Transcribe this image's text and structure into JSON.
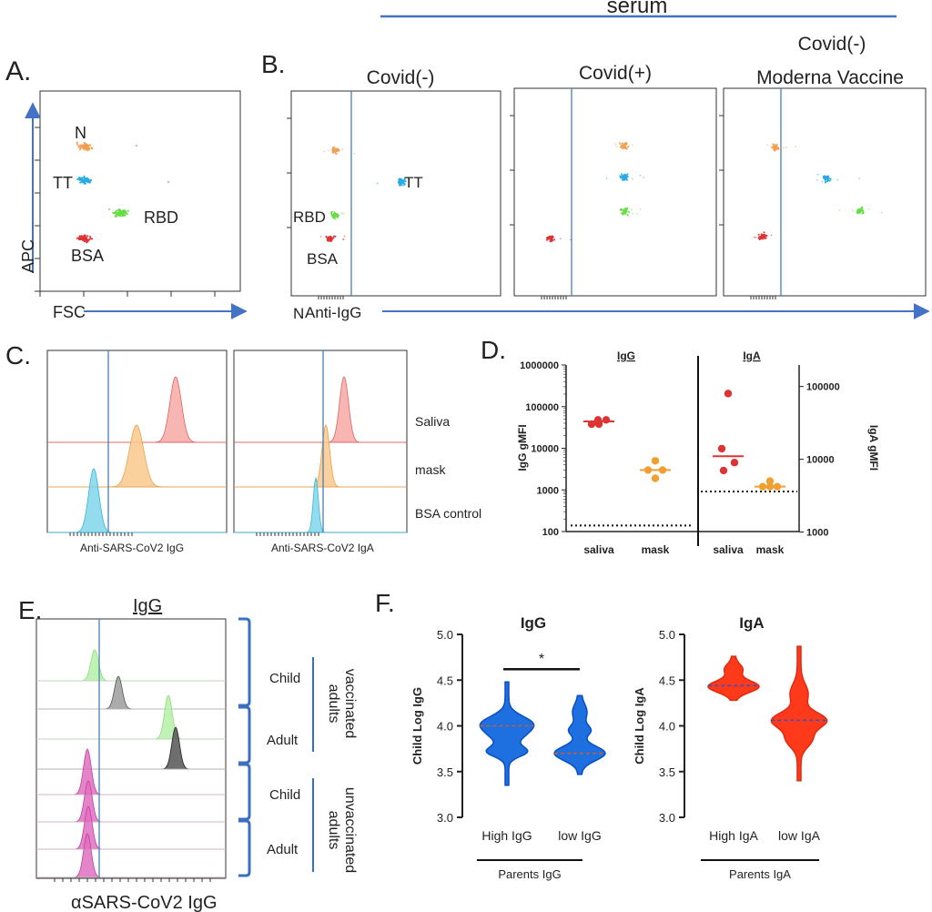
{
  "panel_letters": {
    "a": "A.",
    "b": "B.",
    "c": "C.",
    "d": "D.",
    "e": "E.",
    "f": "F."
  },
  "colors": {
    "axis_blue": "#4472c4",
    "N": "#f0a050",
    "TT": "#29abe2",
    "RBD": "#66dd44",
    "BSA": "#dd3333",
    "violin_blue": "#1e6fe0",
    "violin_red": "#ff3a1a"
  },
  "panel_a": {
    "xlabel": "FSC",
    "ylabel": "APC",
    "labels": {
      "N": "N",
      "TT": "TT",
      "RBD": "RBD",
      "BSA": "BSA"
    }
  },
  "panel_b": {
    "header": "serum",
    "xlabel": "Anti-IgG",
    "titles": [
      "Covid(-)",
      "Covid(+)",
      "Covid(-)",
      "Moderna Vaccine"
    ],
    "labels": {
      "N": "N",
      "TT": "TT",
      "RBD": "RBD",
      "BSA": "BSA"
    }
  },
  "panel_c": {
    "xlabels": [
      "Anti-SARS-CoV2 IgG",
      "Anti-SARS-CoV2 IgA"
    ],
    "rows": [
      "Saliva",
      "mask",
      "BSA control"
    ]
  },
  "panel_e": {
    "title": "IgG",
    "xlabel": "αSARS-CoV2 IgG",
    "groups": [
      "vaccinated",
      "adults",
      "unvaccinated",
      "adults"
    ],
    "rows": [
      "Child",
      "Adult",
      "Child",
      "Adult"
    ]
  },
  "chart_data": [
    {
      "type": "scatter",
      "panel": "D",
      "title_left": "IgG",
      "title_right": "IgA",
      "ylabel_left": "IgG gMFI",
      "ylabel_right": "IgA gMFI",
      "scale": "log",
      "ylim_left": [
        100,
        1000000
      ],
      "ylim_right": [
        1000,
        300000
      ],
      "yticks_left": [
        "1000000",
        "100000",
        "10000",
        "1000",
        "100"
      ],
      "yticks_right": [
        "100000",
        "10000",
        "1000"
      ],
      "categories": [
        "saliva",
        "mask",
        "saliva",
        "mask"
      ],
      "series": [
        {
          "name": "IgG saliva",
          "axis": "left",
          "values": [
            38000,
            48000,
            48000,
            38000
          ],
          "median": 44000
        },
        {
          "name": "IgG mask",
          "axis": "left",
          "values": [
            5000,
            3000,
            3000,
            1900
          ],
          "median": 3000
        },
        {
          "name": "IgA saliva",
          "axis": "right",
          "values": [
            80000,
            14000,
            9000,
            7000
          ],
          "median": 11000
        },
        {
          "name": "IgA mask",
          "axis": "right",
          "values": [
            5000,
            4200,
            4200,
            4200
          ],
          "median": 4200
        }
      ],
      "detection_limit_left": 140,
      "detection_limit_right": 3600
    },
    {
      "type": "violin",
      "panel": "F",
      "title": "IgG",
      "ylabel": "Child Log IgG",
      "ylim": [
        3.0,
        5.0
      ],
      "yticks": [
        "3.0",
        "3.5",
        "4.0",
        "4.5",
        "5.0"
      ],
      "categories": [
        "High IgG",
        "low IgG"
      ],
      "xlabel": "Parents IgG",
      "series": [
        {
          "name": "High IgG",
          "min": 3.35,
          "max": 4.48,
          "median": 4.0
        },
        {
          "name": "low IgG",
          "min": 3.47,
          "max": 4.33,
          "median": 3.7
        }
      ],
      "annotation": "*"
    },
    {
      "type": "violin",
      "panel": "F",
      "title": "IgA",
      "ylabel": "Child Log IgA",
      "ylim": [
        3.0,
        5.0
      ],
      "yticks": [
        "3.0",
        "3.5",
        "4.0",
        "4.5",
        "5.0"
      ],
      "categories": [
        "High IgA",
        "low IgA"
      ],
      "xlabel": "Parents IgA",
      "series": [
        {
          "name": "High IgA",
          "min": 4.28,
          "max": 4.76,
          "median": 4.44
        },
        {
          "name": "low IgA",
          "min": 3.4,
          "max": 4.87,
          "median": 4.06
        }
      ]
    }
  ]
}
